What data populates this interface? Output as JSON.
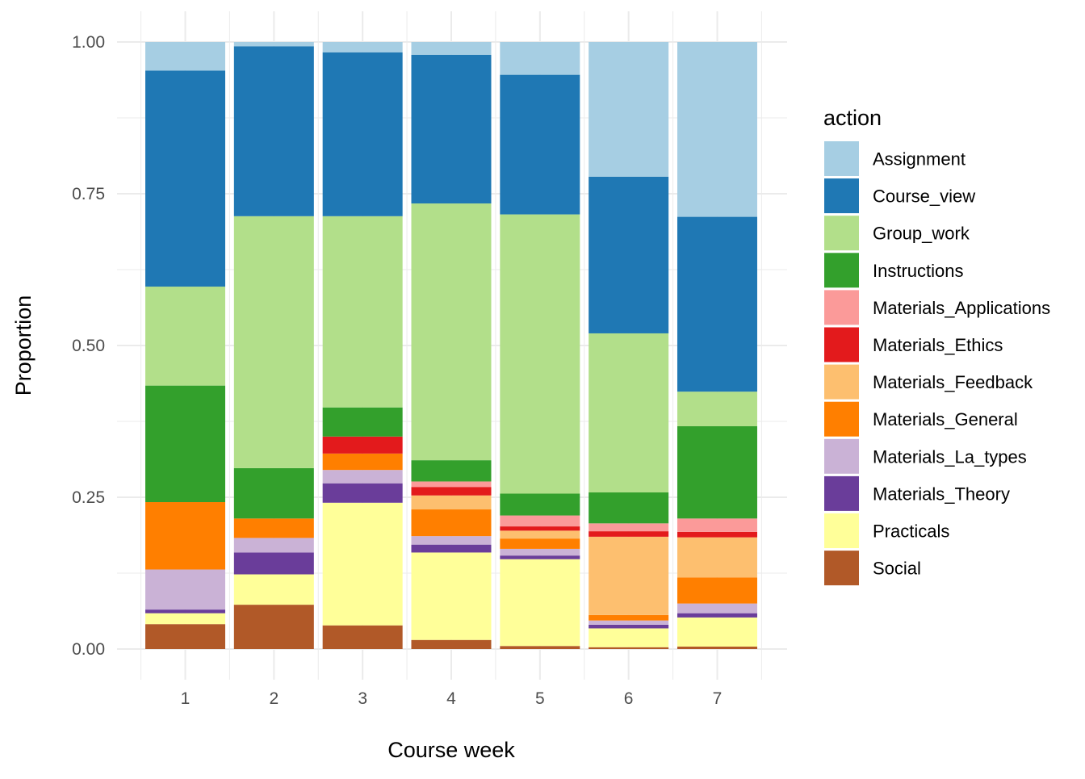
{
  "chart_data": {
    "type": "bar",
    "stacked": true,
    "title": "",
    "xlabel": "Course week",
    "ylabel": "Proportion",
    "ylim": [
      0,
      1
    ],
    "yticks": [
      "0.00",
      "0.25",
      "0.50",
      "0.75",
      "1.00"
    ],
    "ytick_values": [
      0,
      0.25,
      0.5,
      0.75,
      1.0
    ],
    "categories": [
      "1",
      "2",
      "3",
      "4",
      "5",
      "6",
      "7"
    ],
    "grid": true,
    "legend_title": "action",
    "legend_position": "right",
    "series": [
      {
        "name": "Assignment",
        "color": "#A6CEE3",
        "values": [
          0.047,
          0.007,
          0.017,
          0.021,
          0.054,
          0.222,
          0.288
        ]
      },
      {
        "name": "Course_view",
        "color": "#1F78B4",
        "values": [
          0.356,
          0.28,
          0.27,
          0.245,
          0.23,
          0.258,
          0.288
        ]
      },
      {
        "name": "Group_work",
        "color": "#B2DF8A",
        "values": [
          0.163,
          0.415,
          0.315,
          0.423,
          0.46,
          0.262,
          0.057
        ]
      },
      {
        "name": "Instructions",
        "color": "#33A02C",
        "values": [
          0.192,
          0.083,
          0.048,
          0.035,
          0.036,
          0.051,
          0.152
        ]
      },
      {
        "name": "Materials_Applications",
        "color": "#FB9A99",
        "values": [
          0.0,
          0.0,
          0.0,
          0.009,
          0.018,
          0.013,
          0.022
        ]
      },
      {
        "name": "Materials_Ethics",
        "color": "#E31A1C",
        "values": [
          0.0,
          0.0,
          0.028,
          0.014,
          0.007,
          0.009,
          0.009
        ]
      },
      {
        "name": "Materials_Feedback",
        "color": "#FDBF6F",
        "values": [
          0.0,
          0.0,
          0.0,
          0.023,
          0.013,
          0.129,
          0.066
        ]
      },
      {
        "name": "Materials_General",
        "color": "#FF7F00",
        "values": [
          0.111,
          0.032,
          0.027,
          0.044,
          0.017,
          0.009,
          0.043
        ]
      },
      {
        "name": "Materials_La_types",
        "color": "#CAB2D6",
        "values": [
          0.066,
          0.024,
          0.022,
          0.014,
          0.011,
          0.007,
          0.016
        ]
      },
      {
        "name": "Materials_Theory",
        "color": "#6A3D9A",
        "values": [
          0.006,
          0.036,
          0.032,
          0.013,
          0.006,
          0.006,
          0.007
        ]
      },
      {
        "name": "Practicals",
        "color": "#FFFF99",
        "values": [
          0.018,
          0.05,
          0.202,
          0.144,
          0.143,
          0.031,
          0.048
        ]
      },
      {
        "name": "Social",
        "color": "#B15928",
        "values": [
          0.041,
          0.073,
          0.039,
          0.015,
          0.005,
          0.003,
          0.004
        ]
      }
    ]
  }
}
